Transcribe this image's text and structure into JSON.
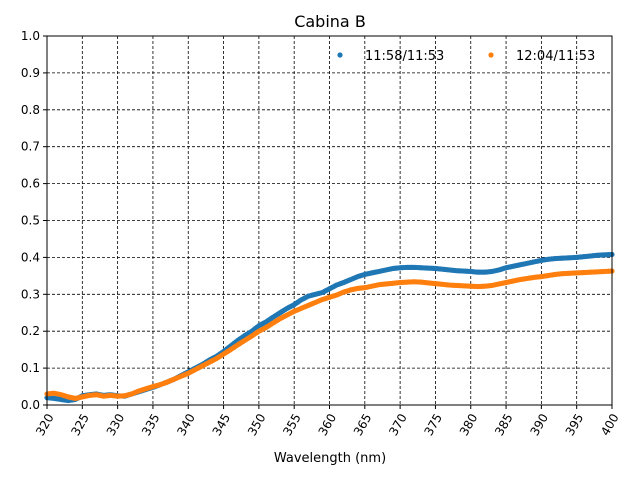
{
  "chart_data": {
    "type": "scatter",
    "title": "Cabina B",
    "xlabel": "Wavelength (nm)",
    "ylabel": "",
    "xlim": [
      320,
      400
    ],
    "ylim": [
      0.0,
      1.0
    ],
    "xticks": [
      "320",
      "325",
      "330",
      "335",
      "340",
      "345",
      "350",
      "355",
      "360",
      "365",
      "370",
      "375",
      "380",
      "385",
      "390",
      "395",
      "400"
    ],
    "yticks": [
      "0.0",
      "0.1",
      "0.2",
      "0.3",
      "0.4",
      "0.5",
      "0.6",
      "0.7",
      "0.8",
      "0.9",
      "1.0"
    ],
    "grid": true,
    "legend_position": "top-right",
    "series": [
      {
        "name": "11:58/11:53",
        "color": "#1f77b4",
        "x": [
          320,
          321,
          322,
          323,
          324,
          325,
          326,
          327,
          328,
          329,
          330,
          331,
          332,
          333,
          334,
          335,
          336,
          337,
          338,
          339,
          340,
          341,
          342,
          343,
          344,
          345,
          346,
          347,
          348,
          349,
          350,
          351,
          352,
          353,
          354,
          355,
          356,
          357,
          358,
          359,
          360,
          361,
          362,
          363,
          364,
          365,
          366,
          367,
          368,
          369,
          370,
          371,
          372,
          373,
          374,
          375,
          376,
          377,
          378,
          379,
          380,
          381,
          382,
          383,
          384,
          385,
          386,
          387,
          388,
          389,
          390,
          391,
          392,
          393,
          394,
          395,
          396,
          397,
          398,
          399,
          400
        ],
        "y": [
          0.02,
          0.018,
          0.015,
          0.012,
          0.015,
          0.025,
          0.028,
          0.03,
          0.026,
          0.028,
          0.025,
          0.024,
          0.03,
          0.036,
          0.042,
          0.048,
          0.055,
          0.062,
          0.07,
          0.08,
          0.09,
          0.1,
          0.11,
          0.122,
          0.132,
          0.145,
          0.16,
          0.175,
          0.188,
          0.2,
          0.215,
          0.225,
          0.238,
          0.25,
          0.262,
          0.272,
          0.285,
          0.295,
          0.3,
          0.305,
          0.315,
          0.325,
          0.332,
          0.34,
          0.348,
          0.354,
          0.358,
          0.362,
          0.366,
          0.37,
          0.372,
          0.373,
          0.373,
          0.372,
          0.371,
          0.37,
          0.368,
          0.366,
          0.364,
          0.363,
          0.362,
          0.36,
          0.36,
          0.362,
          0.366,
          0.372,
          0.376,
          0.38,
          0.384,
          0.388,
          0.392,
          0.395,
          0.397,
          0.398,
          0.399,
          0.4,
          0.402,
          0.404,
          0.406,
          0.407,
          0.408
        ]
      },
      {
        "name": "12:04/11:53",
        "color": "#ff7f0e",
        "x": [
          320,
          321,
          322,
          323,
          324,
          325,
          326,
          327,
          328,
          329,
          330,
          331,
          332,
          333,
          334,
          335,
          336,
          337,
          338,
          339,
          340,
          341,
          342,
          343,
          344,
          345,
          346,
          347,
          348,
          349,
          350,
          351,
          352,
          353,
          354,
          355,
          356,
          357,
          358,
          359,
          360,
          361,
          362,
          363,
          364,
          365,
          366,
          367,
          368,
          369,
          370,
          371,
          372,
          373,
          374,
          375,
          376,
          377,
          378,
          379,
          380,
          381,
          382,
          383,
          384,
          385,
          386,
          387,
          388,
          389,
          390,
          391,
          392,
          393,
          394,
          395,
          396,
          397,
          398,
          399,
          400
        ],
        "y": [
          0.03,
          0.032,
          0.028,
          0.022,
          0.018,
          0.022,
          0.026,
          0.028,
          0.024,
          0.026,
          0.024,
          0.025,
          0.03,
          0.038,
          0.044,
          0.05,
          0.055,
          0.062,
          0.07,
          0.078,
          0.086,
          0.096,
          0.106,
          0.116,
          0.126,
          0.138,
          0.15,
          0.163,
          0.175,
          0.187,
          0.2,
          0.21,
          0.222,
          0.234,
          0.244,
          0.254,
          0.262,
          0.27,
          0.278,
          0.286,
          0.292,
          0.298,
          0.306,
          0.312,
          0.316,
          0.318,
          0.322,
          0.326,
          0.328,
          0.33,
          0.332,
          0.333,
          0.334,
          0.333,
          0.331,
          0.329,
          0.327,
          0.325,
          0.324,
          0.323,
          0.322,
          0.321,
          0.322,
          0.324,
          0.328,
          0.332,
          0.336,
          0.34,
          0.343,
          0.346,
          0.348,
          0.351,
          0.354,
          0.356,
          0.357,
          0.358,
          0.359,
          0.36,
          0.361,
          0.362,
          0.363
        ]
      }
    ]
  }
}
